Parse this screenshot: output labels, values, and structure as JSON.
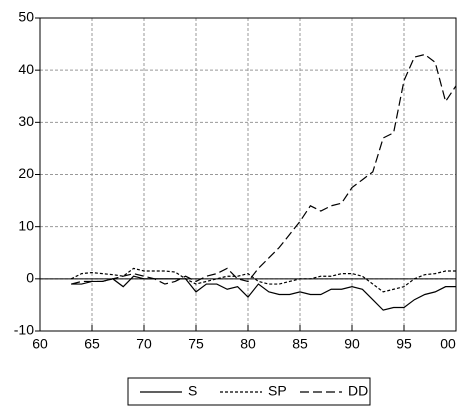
{
  "chart_data": {
    "type": "line",
    "x": [
      63,
      64,
      65,
      66,
      67,
      68,
      69,
      70,
      71,
      72,
      73,
      74,
      75,
      76,
      77,
      78,
      79,
      80,
      81,
      82,
      83,
      84,
      85,
      86,
      87,
      88,
      89,
      90,
      91,
      92,
      93,
      94,
      95,
      96,
      97,
      98,
      99,
      100
    ],
    "series": [
      {
        "name": "S",
        "color": "#000000",
        "dash": "none",
        "values": [
          -1,
          -1,
          -0.5,
          -0.5,
          0,
          -1.5,
          0.5,
          0,
          0,
          0,
          0,
          0,
          -2.5,
          -1,
          -1,
          -2,
          -1.5,
          -3.5,
          -1,
          -2.5,
          -3,
          -3,
          -2.5,
          -3,
          -3,
          -2,
          -2,
          -1.5,
          -2,
          -4,
          -6,
          -5.5,
          -5.5,
          -4,
          -3,
          -2.5,
          -1.5,
          -1.5
        ]
      },
      {
        "name": "SP",
        "color": "#000000",
        "dash": "3,2",
        "values": [
          0,
          1,
          1.2,
          1,
          0.8,
          0.5,
          2,
          1.5,
          1.5,
          1.5,
          1.3,
          0,
          -1,
          -0.5,
          0,
          0.5,
          0.5,
          1,
          -0.5,
          -1,
          -1,
          -0.5,
          0,
          0,
          0.5,
          0.5,
          1,
          1,
          0.5,
          -1,
          -2.5,
          -2,
          -1.5,
          0,
          0.8,
          1,
          1.5,
          1.5
        ]
      },
      {
        "name": "DD",
        "color": "#000000",
        "dash": "9,4",
        "values": [
          -1,
          -0.5,
          -0.5,
          -0.5,
          0,
          0.5,
          1,
          0.5,
          0,
          -1,
          -0.5,
          0.5,
          -0.5,
          0.5,
          1,
          2,
          0,
          -0.5,
          2,
          4,
          6,
          8.5,
          11,
          14,
          13,
          14,
          14.5,
          17.5,
          19,
          20.5,
          27,
          28,
          38,
          42.5,
          43,
          41.5,
          34,
          37
        ]
      }
    ],
    "xlim": [
      60,
      100
    ],
    "xticks": [
      60,
      65,
      70,
      75,
      80,
      85,
      90,
      95,
      {
        "value": 100,
        "label": "00"
      }
    ],
    "ylim": [
      -10,
      50
    ],
    "yticks": [
      -10,
      0,
      10,
      20,
      30,
      40,
      50
    ],
    "grid": true
  }
}
